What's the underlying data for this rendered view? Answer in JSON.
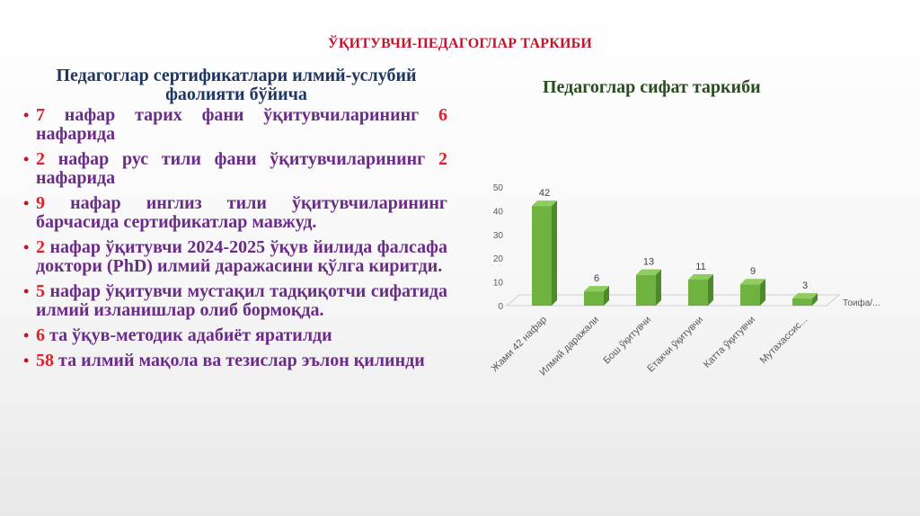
{
  "title": "ЎҚИТУВЧИ-ПЕДАГОГЛАР ТАРКИБИ",
  "left": {
    "heading": "Педагоглар сертификатлари илмий-услубий фаолияти бўйича",
    "items": [
      {
        "num": "7",
        "text": "нафар тарих фани ўқитувчиларининг ",
        "num2": "6",
        "text2": "нафарида"
      },
      {
        "num": "2",
        "text": "нафар рус тили фани ўқитувчиларининг ",
        "num2": "2",
        "text2": "нафарида"
      },
      {
        "num": "9",
        "text": "нафар инглиз тили ўқитувчиларининг барчасида сертификатлар мавжуд.",
        "num2": "",
        "text2": ""
      },
      {
        "num": "2",
        "text": "нафар ўқитувчи 2024-2025 ўқув йилида фалсафа доктори (PhD) илмий даражасини қўлга киритди.",
        "num2": "",
        "text2": ""
      },
      {
        "num": "5",
        "text": "нафар ўқитувчи мустақил тадқиқотчи сифатида илмий изланишлар олиб бормоқда.",
        "num2": "",
        "text2": ""
      },
      {
        "num": "6",
        "text": "та ўқув-методик адабиёт яратилди",
        "num2": "",
        "text2": ""
      },
      {
        "num": "58",
        "text": "та илмий мақола ва тезислар эълон қилинди",
        "num2": "",
        "text2": ""
      }
    ]
  },
  "chart_heading": "Педагоглар сифат таркиби",
  "chart_data": {
    "type": "bar",
    "categories": [
      "Жами 42 нафар",
      "Илмий даражали",
      "Бош ўқитувчи",
      "Етакчи ўқитувчи",
      "Катта ўқитувчи",
      "Мутахассис..."
    ],
    "values": [
      42,
      6,
      13,
      11,
      9,
      3
    ],
    "xlabel": "Тоифа/...",
    "ylabel": "",
    "ylim": [
      0,
      50
    ],
    "yticks": [
      0,
      10,
      20,
      30,
      40,
      50
    ],
    "grid": false,
    "bar_color": "#6fb23f",
    "three_d": true
  },
  "colors": {
    "title": "#c0152f",
    "heading": "#1f3660",
    "text": "#6b2c88",
    "number": "#e0202a",
    "chart_heading": "#2a4d22"
  }
}
